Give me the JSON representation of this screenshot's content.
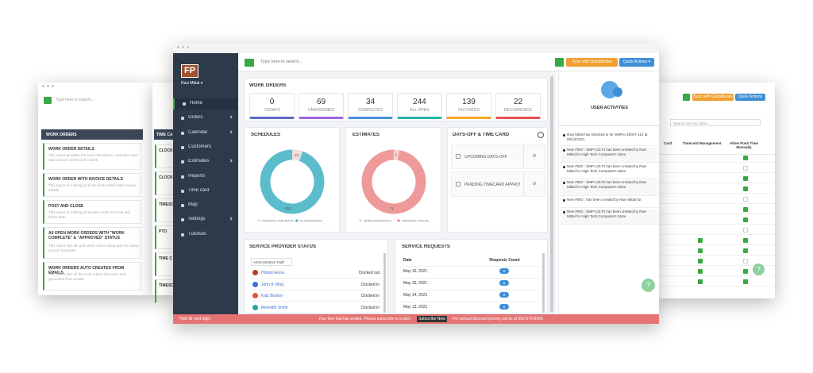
{
  "left_window": {
    "search": "Type here to search...",
    "col1_title": "WORK ORDERS",
    "col2_title": "TIME CA",
    "reports": [
      {
        "title": "WORK ORDER DETAILS",
        "desc": "This report provides the work description, resolution and total amount of the work orders."
      },
      {
        "title": "WORK ORDER WITH INVOICE DETAILS",
        "desc": "This report is a listing of all the work orders with invoice details."
      },
      {
        "title": "POST AND CLOSE",
        "desc": "This report is a listing of all work orders by Post and Close date."
      },
      {
        "title": "All OPEN WORK ORDERS WITH \"WORK COMPLETE\" & \"APPROVED\" STATUS",
        "desc": "This report lists all open work orders along with the status of each schedule."
      },
      {
        "title": "WORK ORDERS AUTO CREATED FROM EMAILS",
        "desc": "This report lists all the work orders that were auto generated from emails."
      }
    ],
    "timecard_items": [
      "CLOCK",
      "CLOCK",
      "TIMESC",
      "PTO",
      "TIME C",
      "TIMESC"
    ]
  },
  "right_window": {
    "sync": "Sync with QuickBooks",
    "quick": "Quick Actions",
    "search": "Search user by name...",
    "headers": [
      "Card",
      "Timecard Management",
      "Allow Push Time Manually"
    ],
    "help": "?"
  },
  "sidebar": {
    "logo": "FP",
    "user": "Ravi Mittal ▾",
    "menu": [
      {
        "label": "Home",
        "arrow": false
      },
      {
        "label": "Orders",
        "arrow": true
      },
      {
        "label": "Calendar",
        "arrow": true
      },
      {
        "label": "Customers",
        "arrow": false
      },
      {
        "label": "Estimates",
        "arrow": true
      },
      {
        "label": "Reports",
        "arrow": false
      },
      {
        "label": "Time card",
        "arrow": false
      },
      {
        "label": "Map",
        "arrow": false
      },
      {
        "label": "Settings",
        "arrow": true
      },
      {
        "label": "Tutorials",
        "arrow": false
      }
    ]
  },
  "header": {
    "search": "Type here to search...",
    "sync": "Sync with QuickBooks",
    "quick": "Quick Actions ▾"
  },
  "work_orders": {
    "title": "WORK ORDERS",
    "cards": [
      {
        "value": 0,
        "label": "TODAYS",
        "color": "#5c6bc0"
      },
      {
        "value": 69,
        "label": "UNASSIGNED",
        "color": "#9c6ade"
      },
      {
        "value": 34,
        "label": "COMPLETED",
        "color": "#4a90e2"
      },
      {
        "value": 244,
        "label": "ALL OPEN",
        "color": "#26b5a8"
      },
      {
        "value": 139,
        "label": "OUTDATED",
        "color": "#f5a623"
      },
      {
        "value": 22,
        "label": "RECURRENCE",
        "color": "#e55353"
      }
    ]
  },
  "schedules": {
    "title": "SCHEDULES",
    "type": "pie",
    "categories": [
      "PENDING FOR APPR...",
      "IN PROGRESS"
    ],
    "values": [
      23,
      416
    ],
    "colors": [
      "#f2dede",
      "#5bbccc"
    ]
  },
  "estimates": {
    "title": "ESTIMATES",
    "type": "pie",
    "categories": [
      "OPEN ESTIMATES",
      "PENDING FOR AP..."
    ],
    "values": [
      2,
      71
    ],
    "colors": [
      "#f8d3d3",
      "#ef9a9a"
    ]
  },
  "days_off": {
    "title": "DAYS-OFF & TIME CARD",
    "rows": [
      {
        "label": "UPCOMING DAYS-OFF",
        "value": 0
      },
      {
        "label": "PENDING TIMECARD APPROVALS",
        "value": 0
      }
    ]
  },
  "service_provider": {
    "title": "SERVICE PROVIDER STATUS",
    "group": "Administrative Staff",
    "rows": [
      {
        "name": "Himani Arora",
        "status": "Clocked out"
      },
      {
        "name": "John B Villa1",
        "status": "Clocked in"
      },
      {
        "name": "Katz Buxton",
        "status": "Clocked in"
      },
      {
        "name": "Meredith Smith",
        "status": "Clocked in"
      }
    ]
  },
  "service_requests": {
    "title": "SERVICE REQUESTS",
    "columns": [
      "Date",
      "Requests Count"
    ],
    "rows": [
      [
        "May 16, 2021",
        0
      ],
      [
        "May 15, 2021",
        0
      ],
      [
        "May 14, 2021",
        0
      ],
      [
        "May 13, 2021",
        0
      ]
    ]
  },
  "user_activities": {
    "title": "USER ACTIVITIES",
    "items": [
      "Ravi Mittal has checked in for SMPro-10007-112 at 05/13/2021",
      "New #WO : SMP-13174 has been created by Ravi Mittal for High Tech Computer's Store",
      "New #WO : SMP-13173 has been created by Ravi Mittal for High Tech Computer's Store",
      "New #WO : SMP-13172 has been created by Ravi Mittal for High Tech Computer's Store",
      "New #WO : has been created by Ravi Mittal for",
      "New #WO : SMP-13170 has been created by Ravi Mittal for High Tech Computer's Store"
    ],
    "help": "?"
  },
  "footer": {
    "hide": "Hide till next login",
    "message": "Your free trial has ended. Please subscribe to a plan.",
    "subscribe": "Subscribe Now",
    "phone": "For annual discount pricing call us at 952-679-8900"
  }
}
